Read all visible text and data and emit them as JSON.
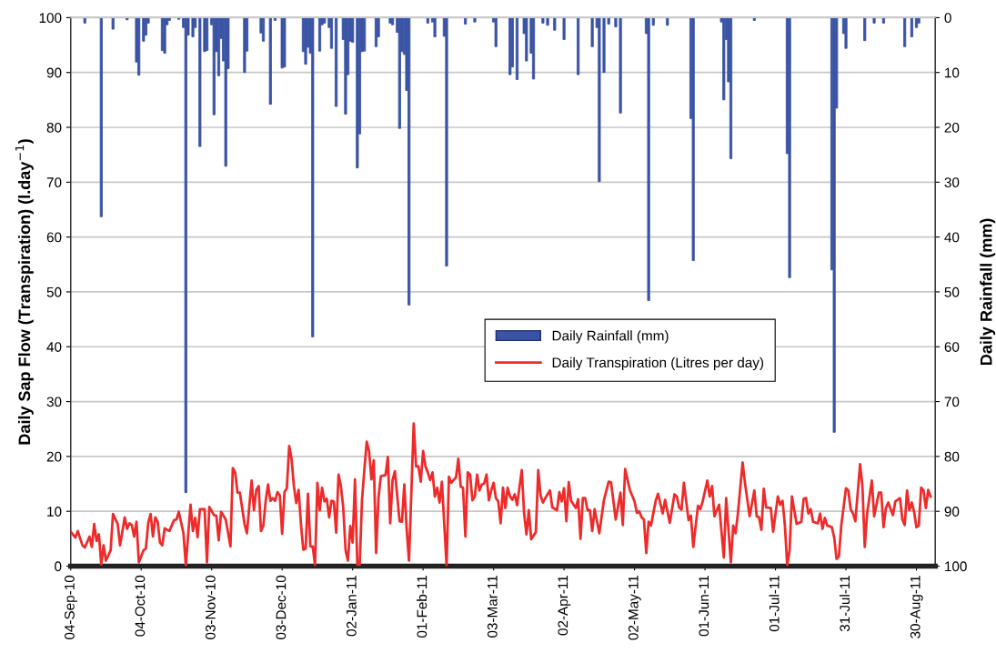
{
  "chart_data": {
    "type": "line",
    "ylabel": "Daily Sap Flow (Transpiration) (l.day$^{−1}$)",
    "y2label": "Daily Rainfall (mm)",
    "xlim": [
      "2010-09-04",
      "2011-09-07"
    ],
    "xticks": [
      {
        "value": "2010-09-04",
        "label": "04-Sep-10"
      },
      {
        "value": "2010-10-04",
        "label": "04-Oct-10"
      },
      {
        "value": "2010-11-03",
        "label": "03-Nov-10"
      },
      {
        "value": "2010-12-03",
        "label": "03-Dec-10"
      },
      {
        "value": "2011-01-02",
        "label": "02-Jan-11"
      },
      {
        "value": "2011-02-01",
        "label": "01-Feb-11"
      },
      {
        "value": "2011-03-03",
        "label": "03-Mar-11"
      },
      {
        "value": "2011-04-02",
        "label": "02-Apr-11"
      },
      {
        "value": "2011-05-02",
        "label": "02-May-11"
      },
      {
        "value": "2011-06-01",
        "label": "01-Jun-11"
      },
      {
        "value": "2011-07-01",
        "label": "01-Jul-11"
      },
      {
        "value": "2011-07-31",
        "label": "31-Jul-11"
      },
      {
        "value": "2011-08-30",
        "label": "30-Aug-11"
      }
    ],
    "ylim": [
      0,
      100
    ],
    "yticks": [
      0,
      10,
      20,
      30,
      40,
      50,
      60,
      70,
      80,
      90,
      100
    ],
    "y2lim": [
      100,
      0
    ],
    "y2ticks": [
      0,
      10,
      20,
      30,
      40,
      50,
      60,
      70,
      80,
      90,
      100
    ],
    "grid": true,
    "legend": "center",
    "marker": "none",
    "line_style": "solid",
    "series": [
      {
        "name": "Daily Rainfall (mm)",
        "type": "bar",
        "axis": "y2",
        "color": "#3a53a4",
        "x": [
          "2010-09-10",
          "2010-09-17",
          "2010-09-22",
          "2010-09-28",
          "2010-10-02",
          "2010-10-03",
          "2010-10-05",
          "2010-10-06",
          "2010-10-07",
          "2010-10-13",
          "2010-10-14",
          "2010-10-15",
          "2010-10-16",
          "2010-10-20",
          "2010-10-22",
          "2010-10-23",
          "2010-10-24",
          "2010-10-26",
          "2010-10-27",
          "2010-10-29",
          "2010-10-31",
          "2010-11-01",
          "2010-11-03",
          "2010-11-04",
          "2010-11-05",
          "2010-11-06",
          "2010-11-07",
          "2010-11-08",
          "2010-11-09",
          "2010-11-10",
          "2010-11-17",
          "2010-11-18",
          "2010-11-24",
          "2010-11-25",
          "2010-11-28",
          "2010-11-30",
          "2010-12-03",
          "2010-12-04",
          "2010-12-12",
          "2010-12-13",
          "2010-12-14",
          "2010-12-15",
          "2010-12-16",
          "2010-12-19",
          "2010-12-20",
          "2010-12-21",
          "2010-12-23",
          "2010-12-24",
          "2010-12-26",
          "2010-12-29",
          "2010-12-30",
          "2010-12-31",
          "2011-01-01",
          "2011-01-02",
          "2011-01-04",
          "2011-01-05",
          "2011-01-06",
          "2011-01-07",
          "2011-01-12",
          "2011-01-13",
          "2011-01-18",
          "2011-01-19",
          "2011-01-21",
          "2011-01-22",
          "2011-01-23",
          "2011-01-24",
          "2011-01-25",
          "2011-01-26",
          "2011-02-03",
          "2011-02-05",
          "2011-02-06",
          "2011-02-10",
          "2011-02-11",
          "2011-02-19",
          "2011-02-23",
          "2011-03-03",
          "2011-03-04",
          "2011-03-10",
          "2011-03-11",
          "2011-03-13",
          "2011-03-16",
          "2011-03-17",
          "2011-03-19",
          "2011-03-20",
          "2011-03-24",
          "2011-03-26",
          "2011-03-29",
          "2011-04-02",
          "2011-04-08",
          "2011-04-14",
          "2011-04-16",
          "2011-04-17",
          "2011-04-19",
          "2011-04-21",
          "2011-04-24",
          "2011-04-26",
          "2011-05-07",
          "2011-05-08",
          "2011-05-10",
          "2011-05-16",
          "2011-05-26",
          "2011-05-27",
          "2011-06-08",
          "2011-06-09",
          "2011-06-10",
          "2011-06-11",
          "2011-06-12",
          "2011-06-22",
          "2011-07-06",
          "2011-07-07",
          "2011-07-25",
          "2011-07-26",
          "2011-07-27",
          "2011-07-30",
          "2011-07-31",
          "2011-08-08",
          "2011-08-12",
          "2011-08-16",
          "2011-08-25",
          "2011-08-28",
          "2011-08-30",
          "2011-08-31"
        ],
        "values": [
          1.0,
          36.3,
          2.1,
          0.4,
          8.1,
          10.5,
          4.3,
          3.2,
          1.0,
          6.0,
          6.5,
          1.3,
          0.5,
          0.3,
          1.8,
          86.6,
          3.2,
          3.5,
          1.8,
          23.5,
          6.2,
          6.0,
          1.3,
          17.7,
          6.2,
          10.6,
          3.8,
          7.9,
          27.1,
          9.3,
          10.0,
          6.1,
          2.8,
          4.3,
          15.8,
          0.5,
          9.2,
          9.0,
          6.2,
          8.5,
          5.4,
          6.5,
          58.2,
          6.1,
          1.3,
          1.0,
          1.8,
          5.6,
          16.2,
          4.0,
          17.6,
          10.4,
          4.3,
          4.5,
          27.4,
          21.2,
          6.2,
          6.1,
          5.3,
          3.5,
          1.0,
          1.3,
          2.7,
          20.2,
          6.2,
          6.7,
          13.3,
          52.4,
          1.0,
          0.8,
          3.5,
          3.4,
          45.3,
          1.2,
          0.8,
          0.8,
          5.3,
          10.4,
          9.0,
          11.3,
          2.9,
          7.9,
          6.5,
          11.2,
          1.0,
          1.4,
          2.3,
          4.0,
          10.4,
          5.3,
          1.8,
          29.9,
          10.0,
          1.2,
          1.7,
          17.4,
          2.9,
          51.6,
          1.4,
          1.4,
          18.4,
          44.3,
          0.8,
          15.0,
          4.0,
          11.7,
          25.7,
          0.5,
          24.8,
          47.4,
          46.0,
          75.6,
          16.5,
          2.9,
          5.6,
          4.2,
          1.0,
          1.0,
          5.3,
          3.5,
          1.8,
          1.0
        ]
      },
      {
        "name": "Daily Transpiration (Litres per day)",
        "color": "#ee2a2a",
        "x": [
          "2010-09-04",
          "2010-09-06",
          "2010-09-07",
          "2010-09-09",
          "2010-09-10",
          "2010-09-12",
          "2010-09-13",
          "2010-09-14",
          "2010-09-15",
          "2010-09-16",
          "2010-09-17",
          "2010-09-18",
          "2010-09-19",
          "2010-09-21",
          "2010-09-22",
          "2010-09-24",
          "2010-09-25",
          "2010-09-27",
          "2010-09-28",
          "2010-09-29",
          "2010-09-30",
          "2010-10-01",
          "2010-10-02",
          "2010-10-03",
          "2010-10-05",
          "2010-10-06",
          "2010-10-07",
          "2010-10-08",
          "2010-10-09",
          "2010-10-10",
          "2010-10-11",
          "2010-10-12",
          "2010-10-13",
          "2010-10-14",
          "2010-10-16",
          "2010-10-18",
          "2010-10-19",
          "2010-10-20",
          "2010-10-22",
          "2010-10-23",
          "2010-10-25",
          "2010-10-26",
          "2010-10-27",
          "2010-10-28",
          "2010-10-29",
          "2010-10-31",
          "2010-11-01",
          "2010-11-02",
          "2010-11-04",
          "2010-11-05",
          "2010-11-06",
          "2010-11-07",
          "2010-11-09",
          "2010-11-11",
          "2010-11-12",
          "2010-11-13",
          "2010-11-14",
          "2010-11-15",
          "2010-11-17",
          "2010-11-18",
          "2010-11-20",
          "2010-11-21",
          "2010-11-22",
          "2010-11-23",
          "2010-11-24",
          "2010-11-25",
          "2010-11-26",
          "2010-11-27",
          "2010-11-28",
          "2010-11-29",
          "2010-11-30",
          "2010-12-01",
          "2010-12-02",
          "2010-12-03",
          "2010-12-04",
          "2010-12-05",
          "2010-12-06",
          "2010-12-07",
          "2010-12-08",
          "2010-12-09",
          "2010-12-10",
          "2010-12-11",
          "2010-12-12",
          "2010-12-13",
          "2010-12-14",
          "2010-12-15",
          "2010-12-16",
          "2010-12-17",
          "2010-12-18",
          "2010-12-19",
          "2010-12-20",
          "2010-12-21",
          "2010-12-22",
          "2010-12-23",
          "2010-12-24",
          "2010-12-25",
          "2010-12-26",
          "2010-12-27",
          "2010-12-28",
          "2010-12-29",
          "2010-12-30",
          "2010-12-31",
          "2011-01-01",
          "2011-01-02",
          "2011-01-03",
          "2011-01-04",
          "2011-01-05",
          "2011-01-06",
          "2011-01-07",
          "2011-01-08",
          "2011-01-09",
          "2011-01-10",
          "2011-01-11",
          "2011-01-12",
          "2011-01-13",
          "2011-01-14",
          "2011-01-16",
          "2011-01-17",
          "2011-01-18",
          "2011-01-19",
          "2011-01-20",
          "2011-01-22",
          "2011-01-23",
          "2011-01-24",
          "2011-01-25",
          "2011-01-26",
          "2011-01-28",
          "2011-01-29",
          "2011-01-30",
          "2011-01-31",
          "2011-02-01",
          "2011-02-02",
          "2011-02-03",
          "2011-02-04",
          "2011-02-05",
          "2011-02-06",
          "2011-02-07",
          "2011-02-08",
          "2011-02-09",
          "2011-02-11",
          "2011-02-12",
          "2011-02-13",
          "2011-02-15",
          "2011-02-16",
          "2011-02-17",
          "2011-02-18",
          "2011-02-19",
          "2011-02-20",
          "2011-02-21",
          "2011-02-22",
          "2011-02-23",
          "2011-02-24",
          "2011-02-25",
          "2011-02-26",
          "2011-02-27",
          "2011-02-28",
          "2011-03-01",
          "2011-03-02",
          "2011-03-03",
          "2011-03-04",
          "2011-03-05",
          "2011-03-06",
          "2011-03-07",
          "2011-03-08",
          "2011-03-09",
          "2011-03-10",
          "2011-03-11",
          "2011-03-12",
          "2011-03-13",
          "2011-03-15",
          "2011-03-16",
          "2011-03-17",
          "2011-03-18",
          "2011-03-19",
          "2011-03-21",
          "2011-03-22",
          "2011-03-23",
          "2011-03-24",
          "2011-03-25",
          "2011-03-27",
          "2011-03-28",
          "2011-03-30",
          "2011-03-31",
          "2011-04-01",
          "2011-04-02",
          "2011-04-03",
          "2011-04-04",
          "2011-04-05",
          "2011-04-07",
          "2011-04-08",
          "2011-04-09",
          "2011-04-10",
          "2011-04-11",
          "2011-04-12",
          "2011-04-13",
          "2011-04-14",
          "2011-04-15",
          "2011-04-17",
          "2011-04-19",
          "2011-04-21",
          "2011-04-22",
          "2011-04-24",
          "2011-04-26",
          "2011-04-27",
          "2011-04-28",
          "2011-04-30",
          "2011-05-02",
          "2011-05-03",
          "2011-05-04",
          "2011-05-05",
          "2011-05-06",
          "2011-05-07",
          "2011-05-08",
          "2011-05-09",
          "2011-05-11",
          "2011-05-12",
          "2011-05-13",
          "2011-05-14",
          "2011-05-15",
          "2011-05-17",
          "2011-05-19",
          "2011-05-20",
          "2011-05-21",
          "2011-05-22",
          "2011-05-23",
          "2011-05-25",
          "2011-05-26",
          "2011-05-27",
          "2011-05-29",
          "2011-05-30",
          "2011-05-31",
          "2011-06-02",
          "2011-06-03",
          "2011-06-04",
          "2011-06-05",
          "2011-06-07",
          "2011-06-09",
          "2011-06-10",
          "2011-06-12",
          "2011-06-13",
          "2011-06-14",
          "2011-06-15",
          "2011-06-17",
          "2011-06-18",
          "2011-06-20",
          "2011-06-22",
          "2011-06-23",
          "2011-06-24",
          "2011-06-25",
          "2011-06-26",
          "2011-06-27",
          "2011-06-29",
          "2011-06-30",
          "2011-07-02",
          "2011-07-03",
          "2011-07-04",
          "2011-07-05",
          "2011-07-06",
          "2011-07-07",
          "2011-07-08",
          "2011-07-10",
          "2011-07-12",
          "2011-07-13",
          "2011-07-14",
          "2011-07-15",
          "2011-07-16",
          "2011-07-17",
          "2011-07-19",
          "2011-07-20",
          "2011-07-21",
          "2011-07-22",
          "2011-07-23",
          "2011-07-25",
          "2011-07-26",
          "2011-07-27",
          "2011-07-28",
          "2011-07-29",
          "2011-07-31",
          "2011-08-01",
          "2011-08-02",
          "2011-08-03",
          "2011-08-04",
          "2011-08-06",
          "2011-08-07",
          "2011-08-08",
          "2011-08-09",
          "2011-08-11",
          "2011-08-12",
          "2011-08-14",
          "2011-08-15",
          "2011-08-16",
          "2011-08-17",
          "2011-08-18",
          "2011-08-20",
          "2011-08-21",
          "2011-08-23",
          "2011-08-24",
          "2011-08-25",
          "2011-08-26",
          "2011-08-27",
          "2011-08-28",
          "2011-08-29",
          "2011-08-30",
          "2011-08-31",
          "2011-09-01",
          "2011-09-02",
          "2011-09-03",
          "2011-09-04",
          "2011-09-05"
        ],
        "values": [
          6.3,
          5.2,
          6.4,
          3.8,
          3.4,
          5.4,
          3.5,
          7.7,
          4.6,
          5.8,
          0.3,
          3.8,
          1.0,
          2.9,
          9.5,
          7.7,
          3.8,
          8.9,
          6.8,
          7.8,
          7.5,
          5.4,
          8.1,
          0.7,
          2.9,
          3.2,
          7.9,
          9.5,
          5.4,
          8.9,
          8.1,
          4.3,
          3.8,
          6.9,
          6.4,
          8.4,
          8.5,
          9.9,
          6.0,
          0.1,
          11.2,
          6.4,
          8.8,
          5.3,
          10.4,
          10.4,
          0.7,
          10.8,
          9.3,
          9.2,
          4.7,
          9.9,
          8.5,
          3.6,
          17.9,
          17.1,
          13.4,
          13.4,
          7.7,
          6.0,
          15.6,
          10.2,
          13.9,
          14.6,
          6.4,
          7.4,
          11.9,
          14.9,
          11.9,
          12.4,
          11.9,
          13.5,
          12.9,
          5.9,
          13.5,
          14.2,
          21.9,
          19.6,
          14.6,
          11.5,
          13.9,
          7.7,
          3.0,
          3.2,
          13.2,
          3.6,
          3.6,
          0.2,
          15.2,
          10.2,
          14.3,
          11.8,
          12.3,
          8.9,
          11.9,
          11.8,
          6.1,
          16.7,
          14.6,
          10.7,
          2.9,
          1.0,
          7.3,
          4.3,
          15.8,
          0.3,
          0.2,
          12.1,
          17.6,
          22.7,
          21.0,
          15.8,
          19.3,
          2.4,
          12.4,
          16.4,
          16.6,
          19.9,
          7.8,
          15.7,
          17.3,
          8.2,
          8.1,
          14.9,
          6.8,
          1.0,
          26.0,
          18.2,
          18.2,
          15.4,
          21.0,
          18.2,
          17.1,
          15.7,
          17.1,
          12.7,
          14.3,
          11.6,
          15.4,
          0.1,
          16.3,
          15.2,
          16.2,
          19.6,
          14.5,
          14.3,
          5.4,
          17.1,
          16.7,
          12.0,
          12.7,
          16.7,
          13.8,
          14.9,
          15.1,
          16.7,
          12.0,
          13.8,
          15.2,
          12.4,
          11.8,
          7.8,
          14.3,
          10.6,
          14.3,
          12.7,
          12.1,
          13.1,
          11.1,
          17.5,
          9.6,
          5.8,
          10.2,
          4.9,
          6.2,
          17.5,
          12.9,
          11.6,
          12.4,
          13.8,
          10.7,
          10.2,
          13.5,
          11.8,
          14.2,
          8.2,
          15.3,
          11.9,
          10.6,
          12.2,
          5.0,
          12.4,
          12.4,
          10.2,
          10.2,
          6.4,
          10.4,
          6.0,
          12.1,
          15.4,
          15.3,
          8.5,
          13.4,
          7.5,
          17.7,
          13.9,
          11.8,
          9.7,
          10.0,
          8.9,
          8.5,
          2.4,
          8.1,
          7.4,
          11.9,
          13.2,
          11.4,
          9.6,
          12.1,
          7.9,
          13.1,
          12.7,
          10.7,
          10.3,
          15.2,
          8.4,
          9.2,
          3.5,
          11.0,
          10.4,
          11.8,
          15.6,
          12.7,
          14.6,
          9.1,
          11.2,
          1.6,
          12.4,
          0.7,
          7.4,
          6.0,
          9.6,
          18.9,
          15.2,
          9.1,
          13.8,
          9.1,
          8.9,
          6.6,
          14.1,
          10.7,
          10.6,
          6.3,
          12.7,
          11.2,
          11.9,
          7.4,
          0.2,
          2.9,
          12.7,
          7.7,
          8.1,
          12.3,
          12.4,
          9.6,
          10.4,
          8.1,
          7.8,
          9.6,
          6.8,
          8.8,
          7.4,
          7.1,
          5.2,
          1.3,
          1.8,
          7.4,
          14.2,
          13.8,
          10.4,
          9.6,
          8.2,
          18.6,
          14.6,
          3.5,
          9.6,
          15.6,
          9.1,
          13.4,
          13.4,
          7.1,
          10.6,
          11.6,
          9.3,
          11.8,
          12.4,
          8.5,
          7.5,
          13.8,
          10.2,
          11.6,
          9.9,
          7.1,
          7.4,
          14.3,
          13.8,
          10.6,
          13.9,
          12.7
        ]
      }
    ]
  }
}
